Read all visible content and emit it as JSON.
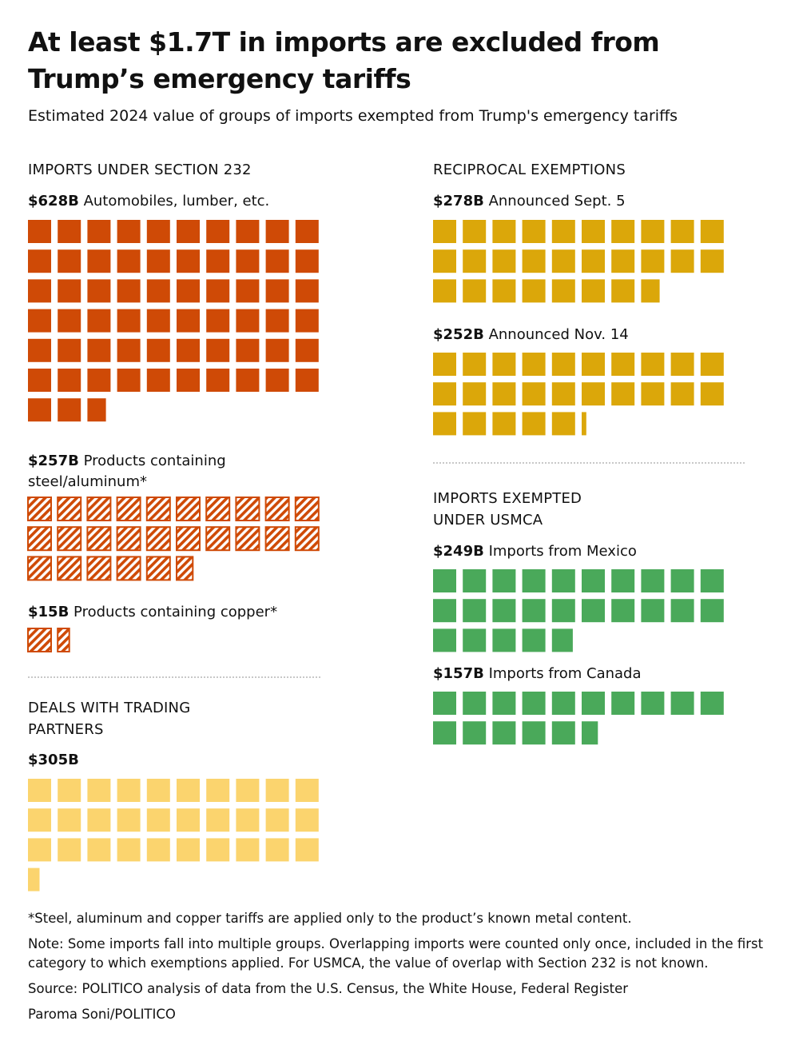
{
  "title": "At least $1.7T in imports are excluded from Trump’s emergency tariffs",
  "subtitle": "Estimated 2024 value of groups of imports exempted from Trump's emergency tariffs",
  "colors": {
    "section232": "#cf4a06",
    "section232_hatch": "#cf4a06",
    "deals": "#fbd46e",
    "reciprocal": "#dba70a",
    "usmca": "#4aa95a",
    "divider": "#c8c8c8"
  },
  "chart_data": {
    "type": "waffle",
    "unit_value_billion_usd": 10,
    "squares_per_row": 10,
    "total_label": "$1.7T",
    "sections": [
      {
        "id": "section232",
        "heading": "IMPORTS UNDER SECTION 232",
        "groups": [
          {
            "id": "autos",
            "value_label": "$628B",
            "description": "Automobiles, lumber, etc.",
            "value": 628,
            "style": "solid",
            "color_key": "section232"
          },
          {
            "id": "steel",
            "value_label": "$257B",
            "description": "Products containing steel/aluminum*",
            "value": 257,
            "style": "hatched",
            "color_key": "section232_hatch"
          },
          {
            "id": "copper",
            "value_label": "$15B",
            "description": "Products containing copper*",
            "value": 15,
            "style": "hatched",
            "color_key": "section232_hatch"
          }
        ]
      },
      {
        "id": "deals",
        "heading": "DEALS WITH TRADING PARTNERS",
        "groups": [
          {
            "id": "deals",
            "value_label": "$305B",
            "description": "",
            "value": 305,
            "style": "solid",
            "color_key": "deals"
          }
        ]
      },
      {
        "id": "reciprocal",
        "heading": "RECIPROCAL EXEMPTIONS",
        "groups": [
          {
            "id": "sept",
            "value_label": "$278B",
            "description": "Announced Sept. 5",
            "value": 278,
            "style": "solid",
            "color_key": "reciprocal"
          },
          {
            "id": "nov",
            "value_label": "$252B",
            "description": "Announced Nov. 14",
            "value": 252,
            "style": "solid",
            "color_key": "reciprocal"
          }
        ]
      },
      {
        "id": "usmca",
        "heading": "IMPORTS EXEMPTED UNDER USMCA",
        "groups": [
          {
            "id": "mexico",
            "value_label": "$249B",
            "description": "Imports from Mexico",
            "value": 249,
            "style": "solid",
            "color_key": "usmca"
          },
          {
            "id": "canada",
            "value_label": "$157B",
            "description": "Imports from Canada",
            "value": 157,
            "style": "solid",
            "color_key": "usmca"
          }
        ]
      }
    ]
  },
  "footnotes": {
    "asterisk": "*Steel, aluminum and copper tariffs are applied only to the product’s known metal content.",
    "note": "Note: Some imports fall into multiple groups. Overlapping imports were counted only once, included in the first category to which exemptions applied. For USMCA, the value of overlap with Section 232 is not known.",
    "source": "Source: POLITICO analysis of data from the U.S. Census, the White House, Federal Register",
    "credit": "Paroma Soni/POLITICO"
  }
}
